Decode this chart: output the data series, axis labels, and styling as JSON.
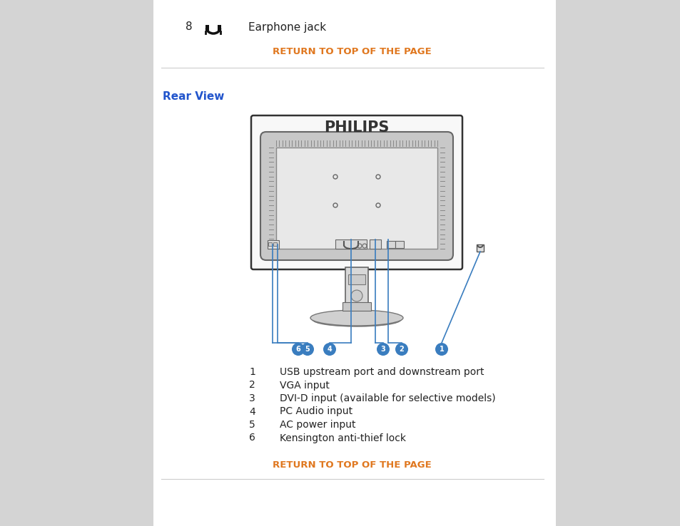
{
  "bg_outer": "#b8c8e8",
  "bg_sidebar_left": "#d4d4d4",
  "bg_sidebar_right": "#d4d4d4",
  "bg_main": "#ffffff",
  "header_number": "8",
  "header_text": "Earphone jack",
  "return_link_text": "RETURN TO TOP OF THE PAGE",
  "return_link_color": "#e07820",
  "section_title": "Rear View",
  "section_title_color": "#2255cc",
  "divider_color": "#cccccc",
  "items": [
    {
      "num": "1",
      "text": "USB upstream port and downstream port"
    },
    {
      "num": "2",
      "text": "VGA input"
    },
    {
      "num": "3",
      "text": "DVI-D input (available for selective models)"
    },
    {
      "num": "4",
      "text": "PC Audio input"
    },
    {
      "num": "5",
      "text": "AC power input"
    },
    {
      "num": "6",
      "text": "Kensington anti-thief lock"
    }
  ],
  "philips_text": "PHILIPS",
  "callout_color": "#3a7dbf",
  "monitor_outline": "#444444",
  "monitor_fill": "#f0f0f0",
  "inner_fill": "#e8e8e8"
}
